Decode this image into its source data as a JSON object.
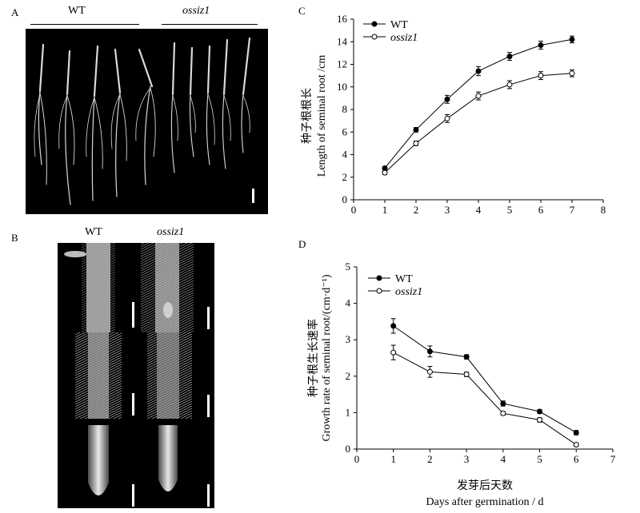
{
  "panel_a": {
    "letter": "A",
    "label_wt": "WT",
    "label_mutant": "ossiz1"
  },
  "panel_b": {
    "letter": "B",
    "label_wt": "WT",
    "label_mutant": "ossiz1"
  },
  "panel_c": {
    "letter": "C"
  },
  "panel_d": {
    "letter": "D"
  },
  "colors": {
    "background": "#ffffff",
    "photo_background": "#000000",
    "axis": "#000000",
    "wt_marker": "#000000",
    "mutant_marker": "#ffffff"
  },
  "chart_data": [
    {
      "id": "C",
      "type": "line",
      "ylabel_cn": "种子根根长",
      "ylabel_en": "Length of seminal root /cm",
      "xlabel_cn": "",
      "xlabel_en": "",
      "xlim": [
        0,
        8
      ],
      "ylim": [
        0,
        16
      ],
      "xticks": [
        0,
        1,
        2,
        3,
        4,
        5,
        6,
        7,
        8
      ],
      "yticks": [
        0,
        2,
        4,
        6,
        8,
        10,
        12,
        14,
        16
      ],
      "legend_position": "top-left",
      "series": [
        {
          "name": "WT",
          "marker": "filled",
          "x": [
            1,
            2,
            3,
            4,
            5,
            6,
            7
          ],
          "y": [
            2.8,
            6.2,
            8.9,
            11.4,
            12.7,
            13.7,
            14.2
          ],
          "err": [
            0.15,
            0.2,
            0.35,
            0.4,
            0.35,
            0.35,
            0.3
          ]
        },
        {
          "name": "ossiz1",
          "marker": "open",
          "x": [
            1,
            2,
            3,
            4,
            5,
            6,
            7
          ],
          "y": [
            2.4,
            5.0,
            7.2,
            9.2,
            10.2,
            11.0,
            11.2
          ],
          "err": [
            0.15,
            0.2,
            0.35,
            0.35,
            0.35,
            0.35,
            0.3
          ]
        }
      ]
    },
    {
      "id": "D",
      "type": "line",
      "ylabel_cn": "种子根生长速率",
      "ylabel_en": "Growth rate of seminal root/(cm·d⁻¹)",
      "xlabel_cn": "发芽后天数",
      "xlabel_en": "Days after germination / d",
      "xlim": [
        0,
        7
      ],
      "ylim": [
        0,
        5
      ],
      "xticks": [
        0,
        1,
        2,
        3,
        4,
        5,
        6,
        7
      ],
      "yticks": [
        0,
        1,
        2,
        3,
        4,
        5
      ],
      "legend_position": "top-left",
      "series": [
        {
          "name": "WT",
          "marker": "filled",
          "x": [
            1,
            2,
            3,
            4,
            5,
            6
          ],
          "y": [
            3.38,
            2.68,
            2.53,
            1.25,
            1.03,
            0.45
          ],
          "err": [
            0.2,
            0.15,
            0.06,
            0.07,
            0.05,
            0.06
          ]
        },
        {
          "name": "ossiz1",
          "marker": "open",
          "x": [
            1,
            2,
            3,
            4,
            5,
            6
          ],
          "y": [
            2.65,
            2.12,
            2.05,
            0.98,
            0.8,
            0.12
          ],
          "err": [
            0.2,
            0.15,
            0.06,
            0.05,
            0.06,
            0.04
          ]
        }
      ]
    }
  ]
}
